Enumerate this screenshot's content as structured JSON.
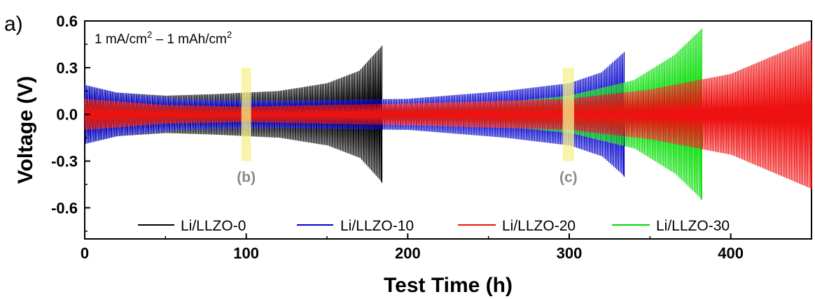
{
  "panel_label": "a)",
  "condition": {
    "current": "1 mA/cm",
    "current_sup": "2",
    "dash": " – ",
    "capacity": "1 mAh/cm",
    "capacity_sup": "2"
  },
  "chart_data": {
    "type": "line",
    "xlabel": "Test Time (h)",
    "ylabel": "Voltage (V)",
    "xlim": [
      0,
      450
    ],
    "ylim": [
      -0.8,
      0.6
    ],
    "x_ticks": [
      "0",
      "100",
      "200",
      "300",
      "400"
    ],
    "y_ticks": [
      "0.6",
      "0.3",
      "0.0",
      "-0.3",
      "-0.6"
    ],
    "grid": false,
    "legend_position": "bottom",
    "series": [
      {
        "name": "Li/LLZO-0",
        "color": "#000000",
        "t_end": 184,
        "envelope": [
          [
            0,
            0.18
          ],
          [
            20,
            0.14
          ],
          [
            50,
            0.12
          ],
          [
            80,
            0.13
          ],
          [
            120,
            0.15
          ],
          [
            150,
            0.2
          ],
          [
            170,
            0.28
          ],
          [
            184,
            0.44
          ]
        ]
      },
      {
        "name": "Li/LLZO-10",
        "color": "#0000cc",
        "t_end": 334,
        "envelope": [
          [
            0,
            0.19
          ],
          [
            20,
            0.14
          ],
          [
            60,
            0.1
          ],
          [
            120,
            0.09
          ],
          [
            200,
            0.1
          ],
          [
            260,
            0.15
          ],
          [
            300,
            0.2
          ],
          [
            320,
            0.27
          ],
          [
            334,
            0.4
          ]
        ]
      },
      {
        "name": "Li/LLZO-20",
        "color": "#ee1111",
        "t_end": 450,
        "envelope": [
          [
            0,
            0.1
          ],
          [
            50,
            0.06
          ],
          [
            100,
            0.05
          ],
          [
            200,
            0.07
          ],
          [
            300,
            0.1
          ],
          [
            350,
            0.16
          ],
          [
            400,
            0.26
          ],
          [
            450,
            0.48
          ]
        ]
      },
      {
        "name": "Li/LLZO-30",
        "color": "#00dd00",
        "t_end": 382,
        "envelope": [
          [
            0,
            0.08
          ],
          [
            50,
            0.05
          ],
          [
            100,
            0.04
          ],
          [
            180,
            0.04
          ],
          [
            250,
            0.07
          ],
          [
            300,
            0.12
          ],
          [
            340,
            0.22
          ],
          [
            365,
            0.38
          ],
          [
            382,
            0.55
          ]
        ]
      }
    ],
    "highlights": [
      {
        "label": "(b)",
        "x_start": 97,
        "x_end": 103,
        "y_top": 0.3,
        "y_bottom": -0.3,
        "color": "#f6f08c"
      },
      {
        "label": "(c)",
        "x_start": 296,
        "x_end": 303,
        "y_top": 0.3,
        "y_bottom": -0.3,
        "color": "#f6f08c"
      }
    ]
  }
}
